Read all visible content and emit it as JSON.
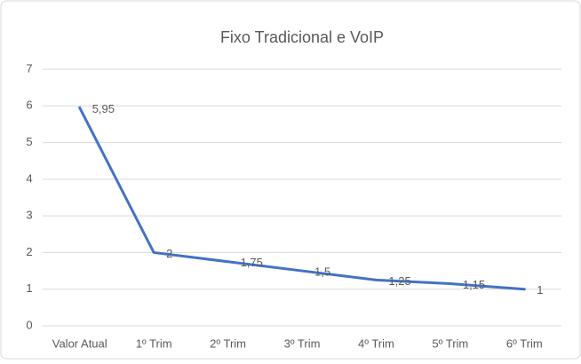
{
  "chart_data": {
    "type": "line",
    "title": "Fixo Tradicional e VoIP",
    "categories": [
      "Valor Atual",
      "1º Trim",
      "2º Trim",
      "3º Trim",
      "4º Trim",
      "5º Trim",
      "6º Trim"
    ],
    "values": [
      5.95,
      2,
      1.75,
      1.5,
      1.25,
      1.15,
      1
    ],
    "value_labels": [
      "5,95",
      "2",
      "1,75",
      "1,5",
      "1,25",
      "1,15",
      "1"
    ],
    "color": "#4472c4",
    "ylim": [
      0,
      7
    ],
    "yticks": [
      0,
      1,
      2,
      3,
      4,
      5,
      6,
      7
    ],
    "grid": true
  }
}
